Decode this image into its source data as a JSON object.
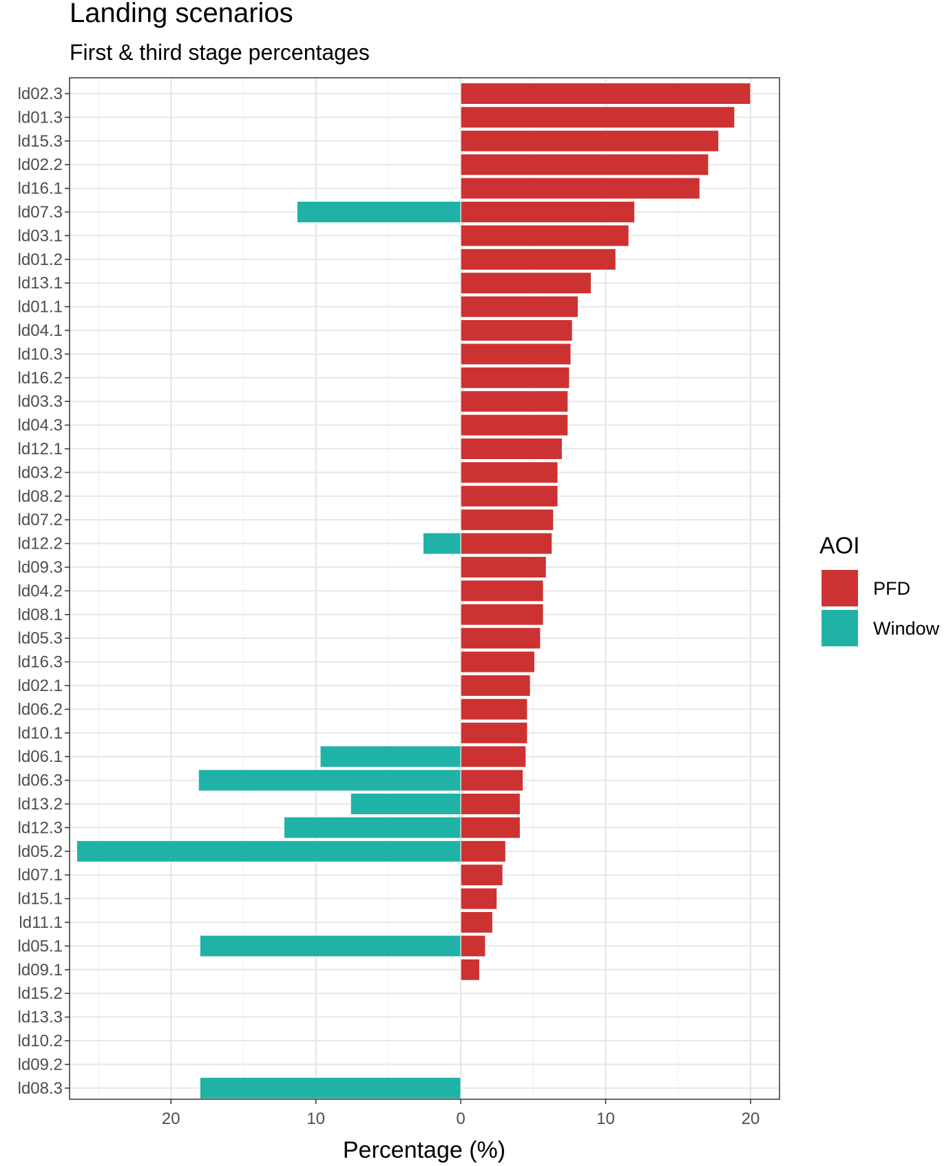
{
  "chart_data": {
    "type": "bar",
    "orientation": "horizontal-diverging",
    "title": "Landing scenarios",
    "subtitle": "First & third stage percentages",
    "xlabel": "Percentage (%)",
    "ylabel": "",
    "xlim": [
      -27,
      22
    ],
    "x_ticks": [
      -20,
      -10,
      0,
      10,
      20
    ],
    "x_tick_labels": [
      "20",
      "10",
      "0",
      "10",
      "20"
    ],
    "grid": true,
    "legend": {
      "title": "AOI",
      "position": "right"
    },
    "categories": [
      "ld02.3",
      "ld01.3",
      "ld15.3",
      "ld02.2",
      "ld16.1",
      "ld07.3",
      "ld03.1",
      "ld01.2",
      "ld13.1",
      "ld01.1",
      "ld04.1",
      "ld10.3",
      "ld16.2",
      "ld03.3",
      "ld04.3",
      "ld12.1",
      "ld03.2",
      "ld08.2",
      "ld07.2",
      "ld12.2",
      "ld09.3",
      "ld04.2",
      "ld08.1",
      "ld05.3",
      "ld16.3",
      "ld02.1",
      "ld06.2",
      "ld10.1",
      "ld06.1",
      "ld06.3",
      "ld13.2",
      "ld12.3",
      "ld05.2",
      "ld07.1",
      "ld15.1",
      "ld11.1",
      "ld05.1",
      "ld09.1",
      "ld15.2",
      "ld13.3",
      "ld10.2",
      "ld09.2",
      "ld08.3"
    ],
    "series": [
      {
        "name": "PFD",
        "color": "#cd3232",
        "values": [
          20.0,
          18.9,
          17.8,
          17.1,
          16.5,
          12.0,
          11.6,
          10.7,
          9.0,
          8.1,
          7.7,
          7.6,
          7.5,
          7.4,
          7.4,
          7.0,
          6.7,
          6.7,
          6.4,
          6.3,
          5.9,
          5.7,
          5.7,
          5.5,
          5.1,
          4.8,
          4.6,
          4.6,
          4.5,
          4.3,
          4.1,
          4.1,
          3.1,
          2.9,
          2.5,
          2.2,
          1.7,
          1.3,
          0,
          0,
          0,
          0,
          0
        ]
      },
      {
        "name": "Window",
        "color": "#20b2a6",
        "values": [
          0,
          0,
          0,
          0,
          0,
          -11.3,
          0,
          0,
          0,
          0,
          0,
          0,
          0,
          0,
          0,
          0,
          0,
          0,
          0,
          -2.6,
          0,
          0,
          0,
          0,
          0,
          0,
          0,
          0,
          -9.7,
          -18.1,
          -7.6,
          -12.2,
          -26.5,
          0,
          0,
          0,
          -18.0,
          0,
          0,
          0,
          0,
          0,
          -18.0
        ]
      }
    ]
  }
}
